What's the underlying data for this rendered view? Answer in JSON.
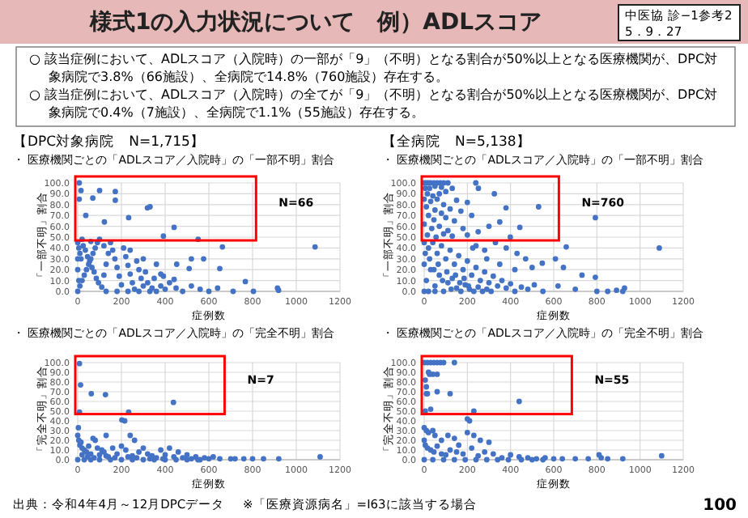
{
  "chart_data": [
    {
      "type": "other",
      "title": "様式1の入力状況について　例）ADLスコア",
      "annotations": [
        "中医協 診−1参考2",
        "5．9．27",
        "○ 該当症例において、ADLスコア（入院時）の一部が「9」（不明）となる割合が50%以上となる医療機関が、DPC対象病院で3.8%（66施設）、全病院で14.8%（760施設）存在する。",
        "○ 該当症例において、ADLスコア（入院時）の全てが「9」（不明）となる割合が50%以上となる医療機関が、DPC対象病院で0.4%（7施設）、全病院で1.1%（55施設）存在する。",
        "出典：令和4年4月～12月DPCデータ",
        "※「医療資源病名」=I63に該当する場合",
        "100"
      ]
    },
    {
      "type": "scatter",
      "title": "【DPC対象病院　N=1,715】",
      "subtitle": "・ 医療機関ごとの「ADLスコア／入院時」の「一部不明」割合",
      "xlabel": "症例数",
      "ylabel": "「一部不明」割合",
      "xlim": [
        0,
        1200
      ],
      "xticks": [
        0,
        200,
        400,
        600,
        800,
        1000,
        1200
      ],
      "ylim": [
        0,
        100
      ],
      "yticks": [
        {
          "value": 0,
          "label": "0.0"
        },
        {
          "value": 10,
          "label": "10.0"
        },
        {
          "value": 20,
          "label": "20.0"
        },
        {
          "value": 30,
          "label": "30.0"
        },
        {
          "value": 40,
          "label": "40.0"
        },
        {
          "value": 50,
          "label": "50.0"
        },
        {
          "value": 60,
          "label": "60.0"
        },
        {
          "value": 70,
          "label": "70.0"
        },
        {
          "value": 80,
          "label": "80.0"
        },
        {
          "value": 90,
          "label": "90.0"
        },
        {
          "value": 100,
          "label": "100.0"
        }
      ],
      "grid": true,
      "marker": "circle",
      "annotations": [
        "N=66"
      ],
      "series": [
        {
          "color": "#4472c4",
          "x": [
            7,
            15,
            7,
            69,
            100,
            172,
            172,
            319,
            331,
            441,
            233,
            37,
            122,
            392,
            551,
            662,
            1086,
            520,
            576,
            453,
            510,
            650,
            767,
            711,
            804,
            919,
            914,
            441,
            392,
            0,
            10,
            20,
            30,
            40,
            50,
            60,
            70,
            80,
            90,
            100,
            0,
            5,
            10,
            15,
            20,
            25,
            35,
            45,
            55,
            65,
            75,
            85,
            95,
            110,
            120,
            130,
            140,
            150,
            160,
            170,
            180,
            190,
            200,
            210,
            220,
            230,
            240,
            250,
            260,
            270,
            280,
            290,
            300,
            310,
            320,
            340,
            350,
            360,
            380,
            400,
            130,
            180,
            230,
            280,
            330,
            420,
            450,
            480,
            520,
            560,
            600,
            640,
            0,
            0,
            5,
            120,
            60,
            240,
            300,
            360,
            380
          ],
          "values": [
            100,
            93,
            85,
            86,
            93,
            92,
            84,
            77,
            78,
            59,
            68,
            70,
            64,
            51,
            48,
            41,
            41,
            30,
            30,
            25,
            21,
            21,
            9,
            0,
            0,
            1,
            3,
            11,
            14,
            0,
            5,
            10,
            15,
            20,
            25,
            30,
            35,
            40,
            45,
            48,
            45,
            40,
            35,
            30,
            48,
            42,
            38,
            32,
            28,
            22,
            18,
            12,
            8,
            4,
            15,
            25,
            35,
            45,
            38,
            30,
            22,
            14,
            6,
            40,
            32,
            24,
            16,
            8,
            2,
            28,
            20,
            12,
            5,
            18,
            8,
            3,
            12,
            0,
            5,
            2,
            0,
            0,
            0,
            0,
            0,
            8,
            3,
            0,
            5,
            2,
            0,
            3,
            20,
            30,
            10,
            42,
            46,
            38,
            30,
            25,
            16
          ]
        }
      ]
    },
    {
      "type": "scatter",
      "title": "【全病院　N=5,138】",
      "subtitle": "・ 医療機関ごとの「ADLスコア／入院時」の「一部不明」割合",
      "xlabel": "症例数",
      "ylabel": "「一部不明」割合",
      "xlim": [
        0,
        1200
      ],
      "xticks": [
        0,
        200,
        400,
        600,
        800,
        1000,
        1200
      ],
      "ylim": [
        0,
        100
      ],
      "yticks": [
        {
          "value": 0,
          "label": "0.0"
        },
        {
          "value": 10,
          "label": "10.0"
        },
        {
          "value": 20,
          "label": "20.0"
        },
        {
          "value": 30,
          "label": "30.0"
        },
        {
          "value": 40,
          "label": "40.0"
        },
        {
          "value": 50,
          "label": "50.0"
        },
        {
          "value": 60,
          "label": "60.0"
        },
        {
          "value": 70,
          "label": "70.0"
        },
        {
          "value": 80,
          "label": "80.0"
        },
        {
          "value": 90,
          "label": "90.0"
        },
        {
          "value": 100,
          "label": "100.0"
        }
      ],
      "grid": true,
      "marker": "circle",
      "annotations": [
        "N=760"
      ],
      "series": [
        {
          "color": "#4472c4",
          "x": [
            0,
            10,
            20,
            30,
            45,
            60,
            75,
            90,
            110,
            239,
            5,
            25,
            50,
            80,
            130,
            251,
            15,
            40,
            70,
            100,
            325,
            0,
            30,
            60,
            90,
            150,
            200,
            10,
            50,
            80,
            120,
            170,
            379,
            530,
            20,
            45,
            100,
            140,
            220,
            350,
            300,
            0,
            35,
            70,
            110,
            180,
            250,
            443,
            15,
            55,
            90,
            130,
            399,
            200,
            793,
            1089,
            658,
            608,
            547,
            645,
            731,
            793,
            891,
            928,
            920,
            850,
            800,
            700,
            620,
            0,
            20,
            40,
            60,
            80,
            100,
            120,
            140,
            160,
            180,
            200,
            220,
            240,
            260,
            280,
            300,
            320,
            340,
            360,
            380,
            400,
            420,
            450,
            480,
            510,
            550,
            0,
            10,
            30,
            50,
            70,
            90,
            110,
            130,
            150,
            170,
            190,
            210,
            230,
            250,
            270,
            290,
            310,
            0,
            20,
            50,
            470,
            500,
            430,
            380,
            330,
            280,
            240,
            5,
            25,
            45,
            65,
            85,
            105,
            125,
            145,
            165,
            185,
            205,
            225,
            290,
            350,
            420
          ],
          "values": [
            100,
            100,
            100,
            100,
            100,
            100,
            100,
            100,
            100,
            100,
            95,
            95,
            97,
            96,
            95,
            95,
            90,
            88,
            90,
            92,
            90,
            85,
            83,
            85,
            80,
            84,
            82,
            78,
            75,
            72,
            76,
            74,
            77,
            78,
            70,
            66,
            68,
            65,
            70,
            64,
            60,
            62,
            58,
            60,
            56,
            58,
            55,
            59,
            52,
            50,
            53,
            51,
            50,
            52,
            68,
            40,
            41,
            30,
            26,
            22,
            15,
            13,
            1,
            3,
            0,
            0,
            0,
            2,
            5,
            45,
            40,
            45,
            35,
            42,
            30,
            38,
            25,
            33,
            20,
            28,
            15,
            22,
            10,
            18,
            8,
            14,
            5,
            10,
            3,
            7,
            0,
            4,
            2,
            6,
            0,
            25,
            10,
            20,
            5,
            15,
            0,
            8,
            12,
            3,
            0,
            6,
            2,
            0,
            4,
            0,
            2,
            0,
            0,
            0,
            0,
            30,
            22,
            35,
            40,
            45,
            38,
            42,
            35,
            30,
            20,
            25,
            10,
            18,
            2,
            15,
            8,
            12,
            5,
            40,
            30,
            25,
            20
          ]
        }
      ]
    },
    {
      "type": "scatter",
      "subtitle": "・ 医療機関ごとの「ADLスコア／入院時」の「完全不明」割合",
      "xlabel": "症例数",
      "ylabel": "「完全不明」割合",
      "xlim": [
        0,
        1200
      ],
      "xticks": [
        0,
        200,
        400,
        600,
        800,
        1000,
        1200
      ],
      "ylim": [
        0,
        100
      ],
      "yticks": [
        {
          "value": 0,
          "label": "0.0"
        },
        {
          "value": 10,
          "label": "10.0"
        },
        {
          "value": 20,
          "label": "20.0"
        },
        {
          "value": 30,
          "label": "30.0"
        },
        {
          "value": 40,
          "label": "40.0"
        },
        {
          "value": 50,
          "label": "50.0"
        },
        {
          "value": 60,
          "label": "60.0"
        },
        {
          "value": 70,
          "label": "70.0"
        },
        {
          "value": 80,
          "label": "80.0"
        },
        {
          "value": 90,
          "label": "90.0"
        },
        {
          "value": 100,
          "label": "100.0"
        }
      ],
      "grid": true,
      "marker": "circle",
      "annotations": [
        "N=7"
      ],
      "series": [
        {
          "color": "#4472c4",
          "x": [
            8,
            13,
            62,
            127,
            438,
            8,
            233,
            202,
            215,
            3,
            0,
            5,
            10,
            15,
            20,
            30,
            40,
            50,
            60,
            70,
            80,
            90,
            100,
            110,
            120,
            130,
            140,
            160,
            180,
            200,
            220,
            240,
            250,
            260,
            280,
            300,
            320,
            340,
            360,
            380,
            400,
            420,
            440,
            460,
            480,
            500,
            520,
            540,
            560,
            580,
            600,
            620,
            650,
            0,
            30,
            60,
            100,
            150,
            200,
            250,
            300,
            350,
            400,
            450,
            500,
            550,
            20,
            45,
            75,
            130,
            170,
            230,
            270,
            330,
            390,
            700,
            720,
            760,
            800,
            850,
            920,
            1109
          ],
          "values": [
            99,
            77,
            68,
            67,
            59,
            49,
            49,
            41,
            40,
            33,
            25,
            20,
            15,
            18,
            12,
            10,
            8,
            14,
            6,
            22,
            20,
            12,
            5,
            10,
            8,
            25,
            3,
            12,
            6,
            14,
            10,
            25,
            4,
            20,
            8,
            12,
            6,
            4,
            2,
            10,
            5,
            12,
            3,
            8,
            2,
            5,
            1,
            3,
            0,
            2,
            1,
            3,
            1,
            0,
            0,
            0,
            0,
            0,
            0,
            0,
            0,
            0,
            0,
            0,
            0,
            0,
            5,
            3,
            2,
            4,
            2,
            3,
            2,
            1,
            1,
            1,
            1,
            1,
            1,
            1,
            1,
            3
          ]
        }
      ]
    },
    {
      "type": "scatter",
      "subtitle": "・ 医療機関ごとの「ADLスコア／入院時」の「完全不明」割合",
      "xlabel": "症例数",
      "ylabel": "「完全不明」割合",
      "xlim": [
        0,
        1200
      ],
      "xticks": [
        0,
        200,
        400,
        600,
        800,
        1000,
        1200
      ],
      "ylim": [
        0,
        100
      ],
      "yticks": [
        {
          "value": 0,
          "label": "0.0"
        },
        {
          "value": 10,
          "label": "10.0"
        },
        {
          "value": 20,
          "label": "20.0"
        },
        {
          "value": 30,
          "label": "30.0"
        },
        {
          "value": 40,
          "label": "40.0"
        },
        {
          "value": 50,
          "label": "50.0"
        },
        {
          "value": 60,
          "label": "60.0"
        },
        {
          "value": 70,
          "label": "70.0"
        },
        {
          "value": 80,
          "label": "80.0"
        },
        {
          "value": 90,
          "label": "90.0"
        },
        {
          "value": 100,
          "label": "100.0"
        }
      ],
      "grid": true,
      "marker": "circle",
      "annotations": [
        "N=55"
      ],
      "series": [
        {
          "color": "#4472c4",
          "x": [
            0,
            15,
            30,
            45,
            60,
            75,
            90,
            140,
            20,
            25,
            40,
            60,
            5,
            10,
            10,
            15,
            60,
            120,
            5,
            30,
            230,
            440,
            200,
            210,
            0,
            10,
            20,
            40,
            50,
            80,
            110,
            140,
            160,
            200,
            230,
            260,
            300,
            1100,
            920,
            850,
            820,
            810,
            760,
            700,
            0,
            5,
            15,
            30,
            45,
            60,
            80,
            100,
            120,
            150,
            180,
            220,
            250,
            280,
            320,
            360,
            400,
            440,
            480,
            520,
            560,
            600,
            640,
            0,
            40,
            90,
            140,
            190,
            240,
            290,
            340,
            390,
            450,
            500,
            550
          ],
          "values": [
            100,
            100,
            100,
            100,
            100,
            100,
            100,
            100,
            90,
            88,
            88,
            88,
            82,
            75,
            68,
            68,
            70,
            68,
            50,
            52,
            50,
            60,
            42,
            40,
            33,
            30,
            28,
            30,
            25,
            20,
            25,
            22,
            15,
            28,
            25,
            20,
            18,
            4,
            1,
            1,
            2,
            5,
            1,
            1,
            20,
            15,
            12,
            10,
            8,
            14,
            6,
            5,
            10,
            8,
            6,
            12,
            4,
            8,
            6,
            2,
            5,
            3,
            2,
            1,
            2,
            1,
            1,
            0,
            0,
            0,
            0,
            0,
            0,
            0,
            0,
            0,
            0,
            0,
            0
          ]
        }
      ]
    }
  ]
}
